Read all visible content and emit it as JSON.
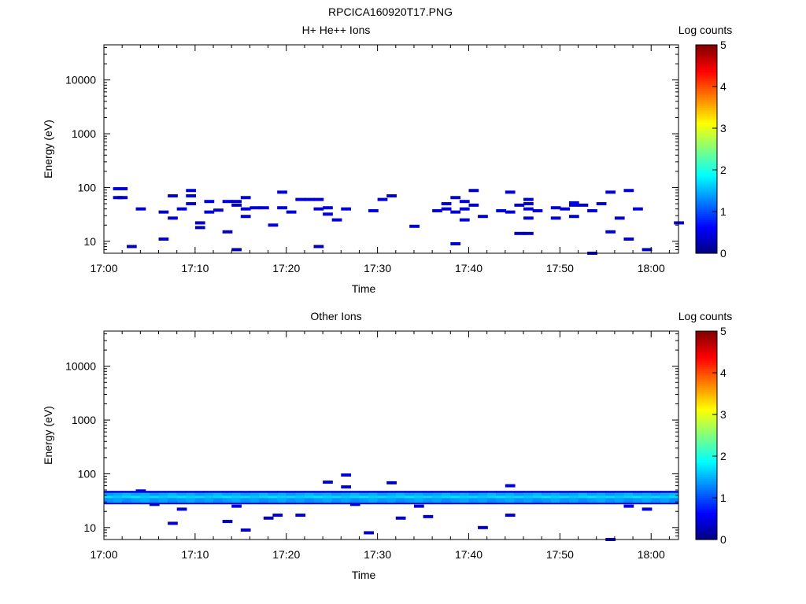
{
  "figure": {
    "title": "RPCICA160920T17.PNG"
  },
  "colorbar": {
    "label": "Log counts",
    "ticks": [
      "0",
      "1",
      "2",
      "3",
      "4",
      "5"
    ]
  },
  "chart_data": [
    {
      "type": "heatmap",
      "title": "H+ He++ Ions",
      "xlabel": "Time",
      "ylabel": "Energy (eV)",
      "x_ticks": [
        "17:00",
        "17:10",
        "17:20",
        "17:30",
        "17:40",
        "17:50",
        "18:00"
      ],
      "y_ticks": [
        "10",
        "100",
        "1000",
        "10000"
      ],
      "y_scale": "log",
      "xlim_minutes_after_1700": [
        0,
        63
      ],
      "ylim": [
        6,
        45000
      ],
      "zlim": [
        0,
        5
      ],
      "colorbar_label": "Log counts",
      "cells": [
        [
          1,
          95,
          0.45
        ],
        [
          1.5,
          95,
          0.45
        ],
        [
          1,
          65,
          0.45
        ],
        [
          1.5,
          65,
          0.45
        ],
        [
          2.5,
          8,
          0.3
        ],
        [
          3.5,
          40,
          0.4
        ],
        [
          6,
          35,
          0.35
        ],
        [
          6,
          11,
          0.3
        ],
        [
          7,
          70,
          0.45
        ],
        [
          7,
          27,
          0.45
        ],
        [
          8,
          40,
          0.45
        ],
        [
          9,
          88,
          0.45
        ],
        [
          9,
          70,
          0.45
        ],
        [
          9,
          50,
          0.45
        ],
        [
          10,
          22,
          0.35
        ],
        [
          10,
          18,
          0.35
        ],
        [
          11,
          55,
          0.45
        ],
        [
          11,
          35,
          0.45
        ],
        [
          12,
          38,
          0.45
        ],
        [
          13,
          55,
          0.45
        ],
        [
          13,
          15,
          0.35
        ],
        [
          14,
          55,
          0.35
        ],
        [
          14,
          47,
          0.35
        ],
        [
          14,
          7,
          0.3
        ],
        [
          15,
          65,
          0.45
        ],
        [
          15,
          40,
          0.45
        ],
        [
          15,
          29,
          0.45
        ],
        [
          16,
          42,
          0.45
        ],
        [
          17,
          42,
          0.45
        ],
        [
          18,
          20,
          0.45
        ],
        [
          19,
          82,
          0.45
        ],
        [
          19,
          42,
          0.45
        ],
        [
          20,
          35,
          0.45
        ],
        [
          21,
          60,
          0.45
        ],
        [
          22,
          60,
          0.45
        ],
        [
          23,
          60,
          0.45
        ],
        [
          23,
          40,
          0.45
        ],
        [
          23,
          8,
          0.3
        ],
        [
          24,
          42,
          0.45
        ],
        [
          24,
          32,
          0.45
        ],
        [
          25,
          25,
          0.45
        ],
        [
          26,
          40,
          0.45
        ],
        [
          29,
          37,
          0.45
        ],
        [
          30,
          60,
          0.45
        ],
        [
          31,
          70,
          0.45
        ],
        [
          33.5,
          19,
          0.35
        ],
        [
          36,
          37,
          0.45
        ],
        [
          37,
          50,
          0.45
        ],
        [
          37,
          40,
          0.45
        ],
        [
          38,
          65,
          0.45
        ],
        [
          38,
          35,
          0.45
        ],
        [
          38,
          9,
          0.35
        ],
        [
          39,
          55,
          0.45
        ],
        [
          39,
          40,
          0.45
        ],
        [
          39,
          25,
          0.45
        ],
        [
          40,
          88,
          0.35
        ],
        [
          40,
          47,
          0.45
        ],
        [
          41,
          29,
          0.45
        ],
        [
          43,
          37,
          0.45
        ],
        [
          44,
          82,
          0.45
        ],
        [
          44,
          35,
          0.45
        ],
        [
          45,
          47,
          0.45
        ],
        [
          45,
          14,
          0.35
        ],
        [
          46,
          14,
          0.35
        ],
        [
          46,
          60,
          0.45
        ],
        [
          46,
          50,
          0.45
        ],
        [
          46,
          40,
          0.45
        ],
        [
          46,
          27,
          0.45
        ],
        [
          47,
          37,
          0.45
        ],
        [
          49,
          42,
          0.45
        ],
        [
          49,
          27,
          0.45
        ],
        [
          50,
          40,
          0.45
        ],
        [
          51,
          52,
          0.45
        ],
        [
          51,
          47,
          0.45
        ],
        [
          51,
          29,
          0.45
        ],
        [
          52,
          47,
          0.45
        ],
        [
          53,
          37,
          0.45
        ],
        [
          53,
          6,
          0.3
        ],
        [
          54,
          50,
          0.45
        ],
        [
          55,
          82,
          0.45
        ],
        [
          55,
          15,
          0.45
        ],
        [
          56,
          27,
          0.45
        ],
        [
          57,
          88,
          0.45
        ],
        [
          57,
          11,
          0.35
        ],
        [
          58,
          40,
          0.45
        ],
        [
          59,
          7,
          0.35
        ],
        [
          62.5,
          22,
          0.45
        ]
      ]
    },
    {
      "type": "heatmap",
      "title": "Other Ions",
      "xlabel": "Time",
      "ylabel": "Energy (eV)",
      "x_ticks": [
        "17:00",
        "17:10",
        "17:20",
        "17:30",
        "17:40",
        "17:50",
        "18:00"
      ],
      "y_ticks": [
        "10",
        "100",
        "1000",
        "10000"
      ],
      "y_scale": "log",
      "xlim_minutes_after_1700": [
        0,
        63
      ],
      "ylim": [
        6,
        45000
      ],
      "zlim": [
        0,
        5
      ],
      "colorbar_label": "Log counts",
      "band": {
        "center_levels": [
          [
            40,
            1.4
          ],
          [
            35,
            1.6
          ],
          [
            32,
            1.3
          ]
        ],
        "edge_levels": [
          [
            45,
            0.45
          ],
          [
            29,
            0.5
          ]
        ]
      },
      "cells": [
        [
          3.5,
          48,
          0.45
        ],
        [
          5,
          27,
          0.4
        ],
        [
          7,
          12,
          0.45
        ],
        [
          8,
          22,
          0.45
        ],
        [
          13,
          13,
          0.4
        ],
        [
          14,
          25,
          0.45
        ],
        [
          15,
          9,
          0.35
        ],
        [
          17.5,
          15,
          0.35
        ],
        [
          18.5,
          17,
          0.45
        ],
        [
          21,
          17,
          0.45
        ],
        [
          24,
          70,
          0.45
        ],
        [
          26,
          95,
          0.45
        ],
        [
          26,
          57,
          0.45
        ],
        [
          27,
          27,
          0.45
        ],
        [
          28.5,
          8,
          0.35
        ],
        [
          31,
          68,
          0.35
        ],
        [
          32,
          15,
          0.45
        ],
        [
          34,
          25,
          0.35
        ],
        [
          35,
          16,
          0.45
        ],
        [
          41,
          10,
          0.35
        ],
        [
          44,
          60,
          0.45
        ],
        [
          44,
          17,
          0.45
        ],
        [
          55,
          6,
          0.3
        ],
        [
          57,
          25,
          0.45
        ],
        [
          59,
          22,
          0.45
        ]
      ]
    }
  ]
}
